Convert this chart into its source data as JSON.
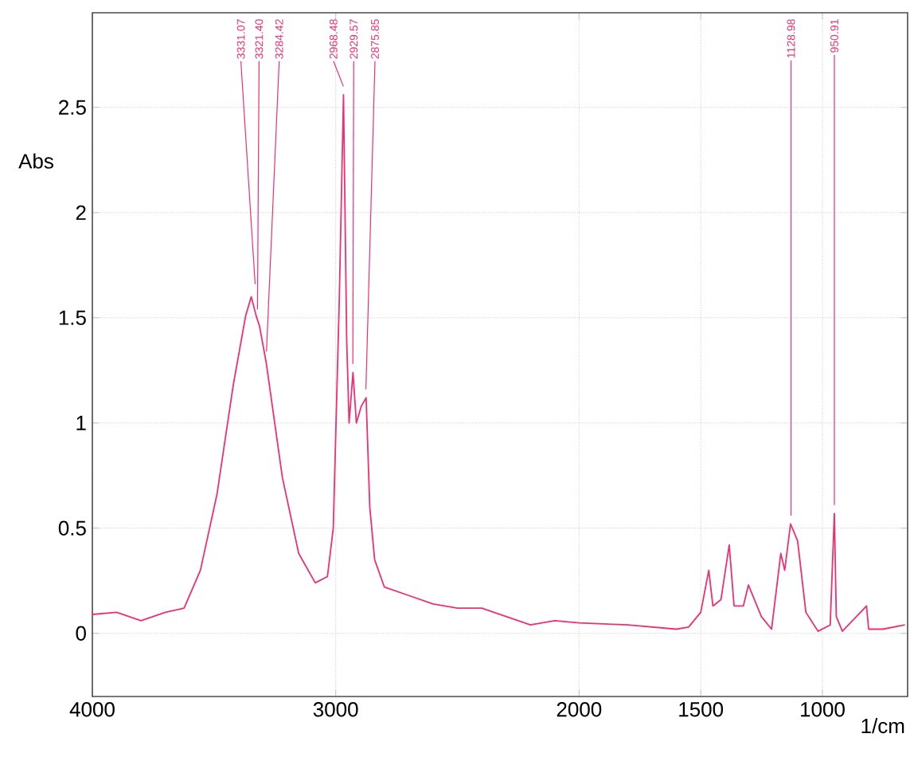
{
  "chart_data": {
    "type": "line",
    "xlabel": "1/cm",
    "ylabel": "Abs",
    "color": "#f0306e",
    "grid": true,
    "line_style": "solid",
    "xlim": [
      4000,
      650
    ],
    "ylim": [
      -0.3,
      2.95
    ],
    "xticks": [
      4000,
      3000,
      2000,
      1500,
      1000
    ],
    "yticks": [
      0,
      0.5,
      1,
      1.5,
      2,
      2.5
    ],
    "x": [
      4000,
      3900,
      3800,
      3700,
      3623,
      3556,
      3488,
      3421,
      3370,
      3347,
      3327,
      3313,
      3286,
      3219,
      3152,
      3084,
      3034,
      3010,
      2985,
      2968,
      2955,
      2945,
      2929,
      2915,
      2895,
      2875,
      2860,
      2840,
      2800,
      2700,
      2600,
      2500,
      2400,
      2300,
      2200,
      2100,
      2000,
      1800,
      1600,
      1550,
      1500,
      1467,
      1450,
      1417,
      1383,
      1363,
      1325,
      1304,
      1251,
      1209,
      1171,
      1155,
      1131,
      1102,
      1068,
      1018,
      968,
      951,
      943,
      918,
      819,
      810,
      752,
      661
    ],
    "values": [
      0.09,
      0.1,
      0.06,
      0.1,
      0.12,
      0.3,
      0.66,
      1.18,
      1.51,
      1.6,
      1.51,
      1.46,
      1.29,
      0.74,
      0.38,
      0.24,
      0.27,
      0.5,
      1.6,
      2.56,
      1.4,
      1.0,
      1.24,
      1.0,
      1.08,
      1.12,
      0.6,
      0.35,
      0.22,
      0.18,
      0.14,
      0.12,
      0.12,
      0.08,
      0.04,
      0.06,
      0.05,
      0.04,
      0.02,
      0.03,
      0.1,
      0.3,
      0.13,
      0.16,
      0.42,
      0.13,
      0.13,
      0.23,
      0.08,
      0.02,
      0.38,
      0.3,
      0.52,
      0.44,
      0.1,
      0.01,
      0.04,
      0.57,
      0.08,
      0.01,
      0.13,
      0.02,
      0.02,
      0.04
    ],
    "annotations": [
      {
        "text": "3331.07",
        "x": 3331.07,
        "y": 1.62
      },
      {
        "text": "3321.40",
        "x": 3321.4,
        "y": 1.5
      },
      {
        "text": "3284.42",
        "x": 3284.42,
        "y": 1.3
      },
      {
        "text": "2968.48",
        "x": 2968.48,
        "y": 2.56
      },
      {
        "text": "2929.57",
        "x": 2929.57,
        "y": 1.24
      },
      {
        "text": "2875.85",
        "x": 2875.85,
        "y": 1.12
      },
      {
        "text": "1128.98",
        "x": 1128.98,
        "y": 0.52
      },
      {
        "text": "950.91",
        "x": 950.91,
        "y": 0.57
      }
    ]
  }
}
